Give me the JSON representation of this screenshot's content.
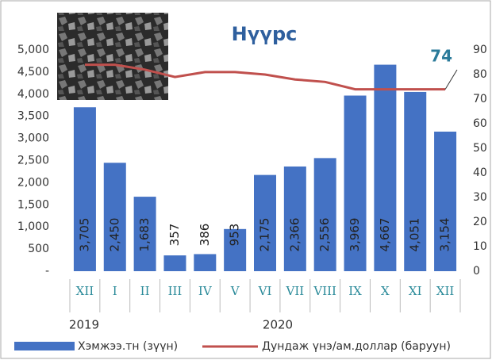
{
  "chart_data": {
    "type": "bar-line",
    "title": "Нүүрс",
    "categories": [
      "XII",
      "I",
      "II",
      "III",
      "IV",
      "V",
      "VI",
      "VII",
      "VIII",
      "IX",
      "X",
      "XI",
      "XII"
    ],
    "years": [
      "2019",
      "2020"
    ],
    "series": [
      {
        "name": "Хэмжээ.тн (зүүн)",
        "color": "#4472c4",
        "type": "bar",
        "values": [
          3705,
          2450,
          1683,
          357,
          386,
          953,
          2175,
          2366,
          2556,
          3969,
          4667,
          4051,
          3154
        ],
        "value_labels": [
          "3,705",
          "2,450",
          "1,683",
          "357",
          "386",
          "953",
          "2,175",
          "2,366",
          "2,556",
          "3,969",
          "4,667",
          "4,051",
          "3,154"
        ]
      },
      {
        "name": "Дундаж үнэ/ам.доллар (баруун)",
        "color": "#c0504d",
        "type": "line",
        "axis": "y2",
        "values": [
          84,
          84,
          82,
          79,
          81,
          81,
          80,
          78,
          77,
          74,
          74,
          74,
          74
        ]
      }
    ],
    "annotation": {
      "text": "74",
      "value": 74
    },
    "ylim": [
      0,
      5000
    ],
    "yticks": [
      {
        "value": 0,
        "label": "-"
      },
      500,
      {
        "value": 1000,
        "label": "1,000"
      },
      {
        "value": 1500,
        "label": "1,500"
      },
      {
        "value": 2000,
        "label": "2,000"
      },
      {
        "value": 2500,
        "label": "2,500"
      },
      {
        "value": 3000,
        "label": "3,000"
      },
      {
        "value": 3500,
        "label": "3,500"
      },
      {
        "value": 4000,
        "label": "4,000"
      },
      {
        "value": 4500,
        "label": "4,500"
      },
      {
        "value": 5000,
        "label": "5,000"
      }
    ],
    "y2lim": [
      0,
      90
    ],
    "y2ticks": [
      0,
      10,
      20,
      30,
      40,
      50,
      60,
      70,
      80,
      90
    ]
  }
}
